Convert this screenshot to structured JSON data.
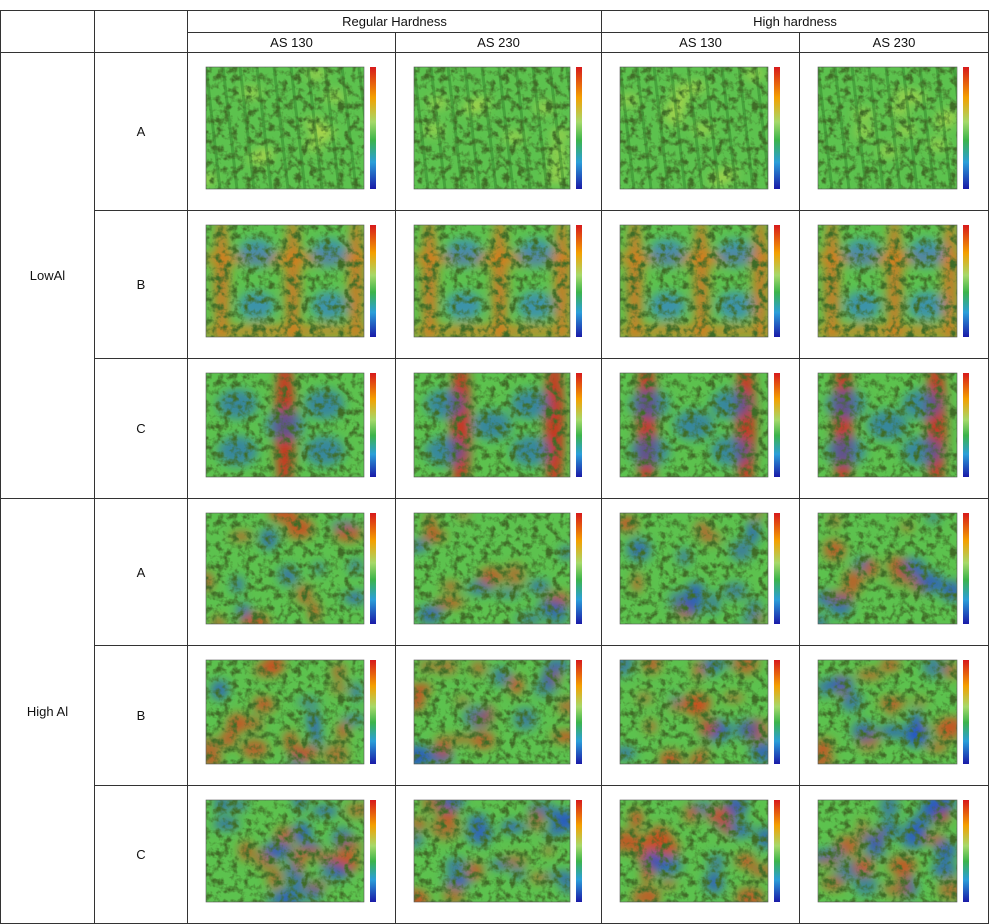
{
  "table": {
    "group_headers": [
      "Regular Hardness",
      "High hardness"
    ],
    "column_headers": [
      "AS 130",
      "AS 230",
      "AS 130",
      "AS 230"
    ],
    "row_groups": [
      {
        "label": "LowAl",
        "rows": [
          "A",
          "B",
          "C"
        ]
      },
      {
        "label": "High Al",
        "rows": [
          "A",
          "B",
          "C"
        ]
      }
    ]
  }
}
